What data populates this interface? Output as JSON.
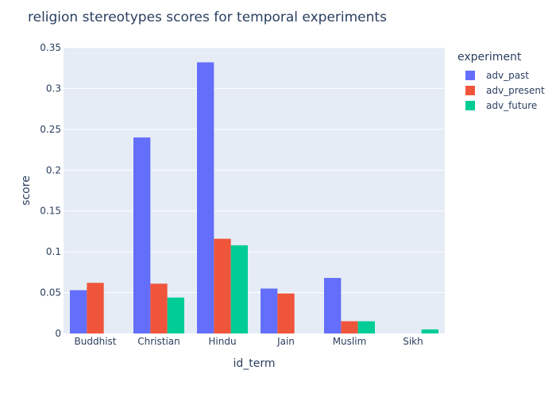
{
  "chart_data": {
    "type": "bar",
    "title": "religion stereotypes scores for temporal experiments",
    "xlabel": "id_term",
    "ylabel": "score",
    "categories": [
      "Buddhist",
      "Christian",
      "Hindu",
      "Jain",
      "Muslim",
      "Sikh"
    ],
    "ylim": [
      0,
      0.35
    ],
    "yticks": [
      "0",
      "0.05",
      "0.1",
      "0.15",
      "0.2",
      "0.25",
      "0.3",
      "0.35"
    ],
    "ytick_values": [
      0,
      0.05,
      0.1,
      0.15,
      0.2,
      0.25,
      0.3,
      0.35
    ],
    "legend_title": "experiment",
    "legend_position": "top-right",
    "grid": true,
    "series": [
      {
        "name": "adv_past",
        "color": "#636efa",
        "values": [
          0.053,
          0.24,
          0.332,
          0.055,
          0.068,
          0
        ]
      },
      {
        "name": "adv_present",
        "color": "#ef553b",
        "values": [
          0.062,
          0.061,
          0.116,
          0.049,
          0.015,
          0
        ]
      },
      {
        "name": "adv_future",
        "color": "#00cc96",
        "values": [
          0,
          0.044,
          0.108,
          0,
          0.015,
          0.005
        ]
      }
    ]
  },
  "colors": {
    "plot_background": "#e5ecf6",
    "grid": "#ffffff",
    "text": "#2a3f5f"
  }
}
